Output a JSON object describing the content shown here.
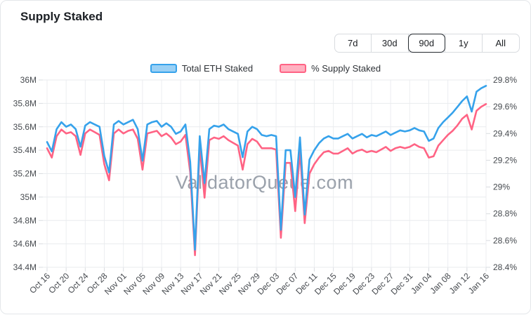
{
  "card": {
    "title": "Supply Staked"
  },
  "range_buttons": {
    "options": [
      "7d",
      "30d",
      "90d",
      "1y",
      "All"
    ],
    "selected": "90d"
  },
  "legend": [
    {
      "label": "Total ETH Staked",
      "color": "#36A2EB",
      "fill": "#9AD0F5"
    },
    {
      "label": "% Supply Staked",
      "color": "#FF6384",
      "fill": "#FFB1C1"
    }
  ],
  "watermark": "ValidatorQueue.com",
  "chart_data": {
    "type": "line",
    "title": "Supply Staked",
    "grid": true,
    "legend_position": "top",
    "x_interval": "daily",
    "x_start": "Oct 16",
    "x_end": "Jan 16",
    "x_tick_labels": [
      "Oct 16",
      "Oct 20",
      "Oct 24",
      "Oct 28",
      "Nov 01",
      "Nov 05",
      "Nov 09",
      "Nov 13",
      "Nov 17",
      "Nov 21",
      "Nov 25",
      "Nov 29",
      "Dec 03",
      "Dec 07",
      "Dec 11",
      "Dec 15",
      "Dec 19",
      "Dec 23",
      "Dec 27",
      "Dec 31",
      "Jan 04",
      "Jan 08",
      "Jan 12",
      "Jan 16"
    ],
    "left_axis": {
      "series": "Total ETH Staked",
      "min": 34.4,
      "max": 36.0,
      "unit": "M",
      "tick_labels": [
        "36M",
        "35.8M",
        "35.6M",
        "35.4M",
        "35.2M",
        "35M",
        "34.8M",
        "34.6M",
        "34.4M"
      ]
    },
    "right_axis": {
      "series": "% Supply Staked",
      "min": 28.4,
      "max": 29.8,
      "unit": "%",
      "tick_labels": [
        "29.8%",
        "29.6%",
        "29.4%",
        "29.2%",
        "29%",
        "28.8%",
        "28.6%",
        "28.4%"
      ]
    },
    "series": [
      {
        "name": "Total ETH Staked",
        "axis": "left",
        "color": "#36A2EB",
        "unit": "M ETH",
        "values": [
          35.47,
          35.39,
          35.58,
          35.64,
          35.6,
          35.62,
          35.58,
          35.43,
          35.61,
          35.64,
          35.62,
          35.6,
          35.35,
          35.21,
          35.62,
          35.65,
          35.62,
          35.64,
          35.66,
          35.58,
          35.31,
          35.62,
          35.64,
          35.65,
          35.6,
          35.63,
          35.6,
          35.54,
          35.56,
          35.62,
          35.3,
          34.55,
          35.52,
          35.12,
          35.58,
          35.61,
          35.6,
          35.62,
          35.58,
          35.56,
          35.54,
          35.34,
          35.56,
          35.6,
          35.58,
          35.53,
          35.52,
          35.53,
          35.52,
          34.72,
          35.4,
          35.4,
          35.0,
          35.51,
          34.85,
          35.32,
          35.4,
          35.46,
          35.5,
          35.52,
          35.5,
          35.5,
          35.52,
          35.54,
          35.5,
          35.52,
          35.54,
          35.51,
          35.53,
          35.52,
          35.54,
          35.56,
          35.53,
          35.55,
          35.57,
          35.56,
          35.57,
          35.59,
          35.57,
          35.56,
          35.48,
          35.5,
          35.59,
          35.64,
          35.68,
          35.72,
          35.77,
          35.82,
          35.86,
          35.73,
          35.9,
          35.93,
          35.95
        ]
      },
      {
        "name": "% Supply Staked",
        "axis": "right",
        "color": "#FF6384",
        "unit": "%",
        "values": [
          29.29,
          29.22,
          29.38,
          29.43,
          29.4,
          29.41,
          29.38,
          29.24,
          29.4,
          29.43,
          29.41,
          29.39,
          29.17,
          29.05,
          29.4,
          29.43,
          29.4,
          29.42,
          29.43,
          29.36,
          29.13,
          29.4,
          29.41,
          29.42,
          29.38,
          29.4,
          29.37,
          29.32,
          29.34,
          29.39,
          29.11,
          28.49,
          29.3,
          28.92,
          29.35,
          29.37,
          29.36,
          29.38,
          29.35,
          29.33,
          29.31,
          29.13,
          29.32,
          29.36,
          29.34,
          29.29,
          29.29,
          29.29,
          29.28,
          28.62,
          29.18,
          29.18,
          28.82,
          29.27,
          28.73,
          29.1,
          29.17,
          29.22,
          29.26,
          29.27,
          29.25,
          29.25,
          29.27,
          29.29,
          29.25,
          29.27,
          29.28,
          29.26,
          29.27,
          29.26,
          29.28,
          29.3,
          29.27,
          29.29,
          29.3,
          29.29,
          29.3,
          29.32,
          29.3,
          29.29,
          29.22,
          29.23,
          29.31,
          29.35,
          29.39,
          29.42,
          29.46,
          29.51,
          29.54,
          29.43,
          29.57,
          29.6,
          29.62
        ]
      }
    ]
  }
}
